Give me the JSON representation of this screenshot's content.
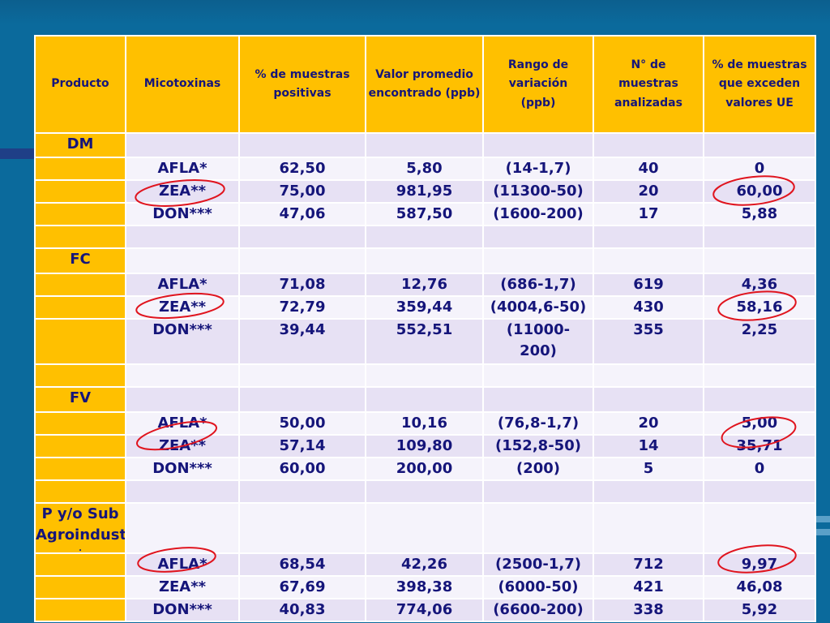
{
  "headers": [
    "Producto",
    "Micotoxinas",
    "% de muestras positivas",
    "Valor promedio encontrado (ppb)",
    "Rango de variación (ppb)",
    "N° de muestras analizadas",
    "% de muestras que exceden valores UE"
  ],
  "groups": {
    "dm": {
      "label": "DM",
      "rows": [
        {
          "m": "AFLA*",
          "pos": "62,50",
          "prom": "5,80",
          "rango": "(14-1,7)",
          "n": "40",
          "ue": "0"
        },
        {
          "m": "ZEA**",
          "pos": "75,00",
          "prom": "981,95",
          "rango": "(11300-50)",
          "n": "20",
          "ue": "60,00"
        },
        {
          "m": "DON***",
          "pos": "47,06",
          "prom": "587,50",
          "rango": "(1600-200)",
          "n": "17",
          "ue": "5,88"
        }
      ]
    },
    "fc": {
      "label": "FC",
      "rows": [
        {
          "m": "AFLA*",
          "pos": "71,08",
          "prom": "12,76",
          "rango": "(686-1,7)",
          "n": "619",
          "ue": "4,36"
        },
        {
          "m": "ZEA**",
          "pos": "72,79",
          "prom": "359,44",
          "rango": "(4004,6-50)",
          "n": "430",
          "ue": "58,16"
        },
        {
          "m": "DON***",
          "pos": "39,44",
          "prom": "552,51",
          "rango": "(11000-200)",
          "n": "355",
          "ue": "2,25"
        }
      ]
    },
    "fv": {
      "label": "FV",
      "rows": [
        {
          "m": "AFLA*",
          "pos": "50,00",
          "prom": "10,16",
          "rango": "(76,8-1,7)",
          "n": "20",
          "ue": "5,00"
        },
        {
          "m": "ZEA**",
          "pos": "57,14",
          "prom": "109,80",
          "rango": "(152,8-50)",
          "n": "14",
          "ue": "35,71"
        },
        {
          "m": "DON***",
          "pos": "60,00",
          "prom": "200,00",
          "rango": "(200)",
          "n": "5",
          "ue": "0"
        }
      ]
    },
    "psa": {
      "label_line1": "P y/o Sub",
      "label_line2": "Agroindustria",
      "label_dot": ".",
      "rows": [
        {
          "m": "AFLA*",
          "pos": "68,54",
          "prom": "42,26",
          "rango": "(2500-1,7)",
          "n": "712",
          "ue": "9,97"
        },
        {
          "m": "ZEA**",
          "pos": "67,69",
          "prom": "398,38",
          "rango": "(6000-50)",
          "n": "421",
          "ue": "46,08"
        },
        {
          "m": "DON***",
          "pos": "40,83",
          "prom": "774,06",
          "rango": "(6600-200)",
          "n": "338",
          "ue": "5,92"
        }
      ]
    }
  },
  "colors": {
    "header_bg": "#ffc000",
    "row_light": "#f5f3fb",
    "row_dark": "#e7e1f4",
    "text": "#15157a",
    "background": "#0b6a9c",
    "highlight_circle": "#e0141e"
  }
}
